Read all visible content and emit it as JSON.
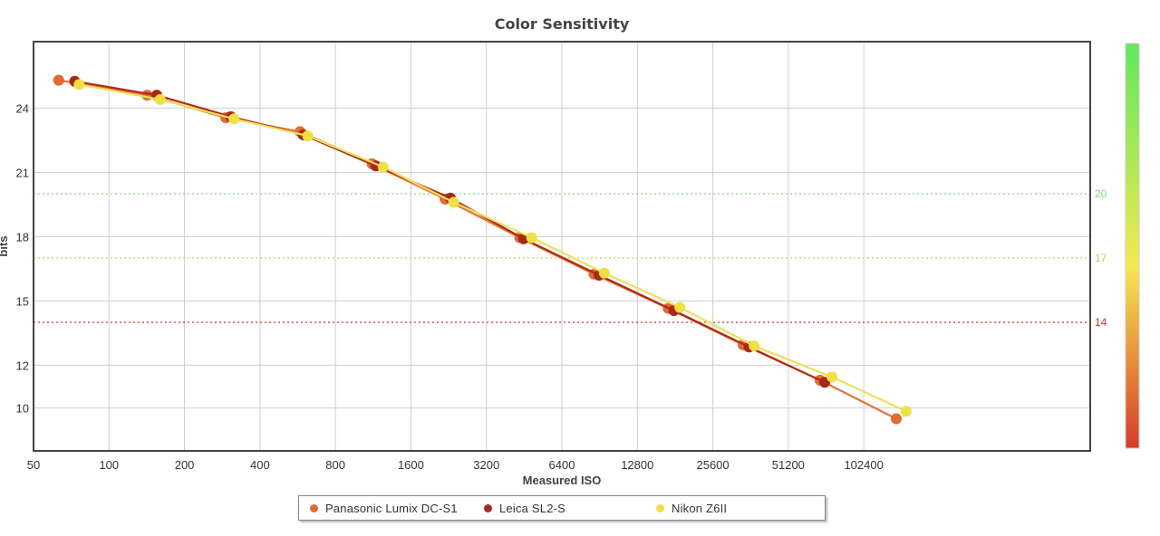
{
  "chart_data": {
    "type": "line",
    "title": "Color Sensitivity",
    "xlabel": "Measured ISO",
    "ylabel": "bits",
    "x_scale": "log2",
    "x_ticks": [
      50,
      100,
      200,
      400,
      800,
      1600,
      3200,
      6400,
      12800,
      25600,
      51200,
      102400
    ],
    "xlim": [
      50,
      819200
    ],
    "y_ticks": [
      10,
      12,
      15,
      18,
      21,
      24
    ],
    "ylim": [
      8,
      27.1
    ],
    "grid": true,
    "reference_lines": [
      {
        "value": 20,
        "label": "20",
        "color": "#7de07d"
      },
      {
        "value": 17,
        "label": "17",
        "color": "#ecc05a"
      },
      {
        "value": 14,
        "label": "14",
        "color": "#d63030"
      }
    ],
    "color_scale": {
      "top": "#5ee85e",
      "mid": "#f5e94c",
      "bottom": "#d93a2a"
    },
    "legend_position": "bottom-center",
    "series": [
      {
        "name": "Panasonic Lumix DC-S1",
        "color": "#e8743a",
        "marker_color": "#e36a30",
        "x": [
          63,
          142,
          292,
          578,
          1120,
          2190,
          4350,
          8600,
          17000,
          33800,
          68500,
          138000
        ],
        "y": [
          25.3,
          24.6,
          23.55,
          22.9,
          21.4,
          19.75,
          17.95,
          16.25,
          14.65,
          12.95,
          11.3,
          9.5
        ]
      },
      {
        "name": "Leica SL2-S",
        "color": "#b02a18",
        "marker_color": "#a8281a",
        "x": [
          73,
          155,
          306,
          595,
          1160,
          2300,
          4500,
          9000,
          17900,
          35700,
          71500
        ],
        "y": [
          25.25,
          24.6,
          23.6,
          22.75,
          21.3,
          19.8,
          17.9,
          16.2,
          14.55,
          12.85,
          11.2
        ]
      },
      {
        "name": "Nikon Z6II",
        "color": "#ede05a",
        "marker_color": "#f0e040",
        "x": [
          76,
          160,
          315,
          620,
          1240,
          2370,
          4850,
          9450,
          18900,
          37400,
          76500,
          151000
        ],
        "y": [
          25.1,
          24.4,
          23.5,
          22.7,
          21.25,
          19.6,
          17.95,
          16.3,
          14.7,
          12.9,
          11.45,
          9.85
        ]
      }
    ]
  }
}
